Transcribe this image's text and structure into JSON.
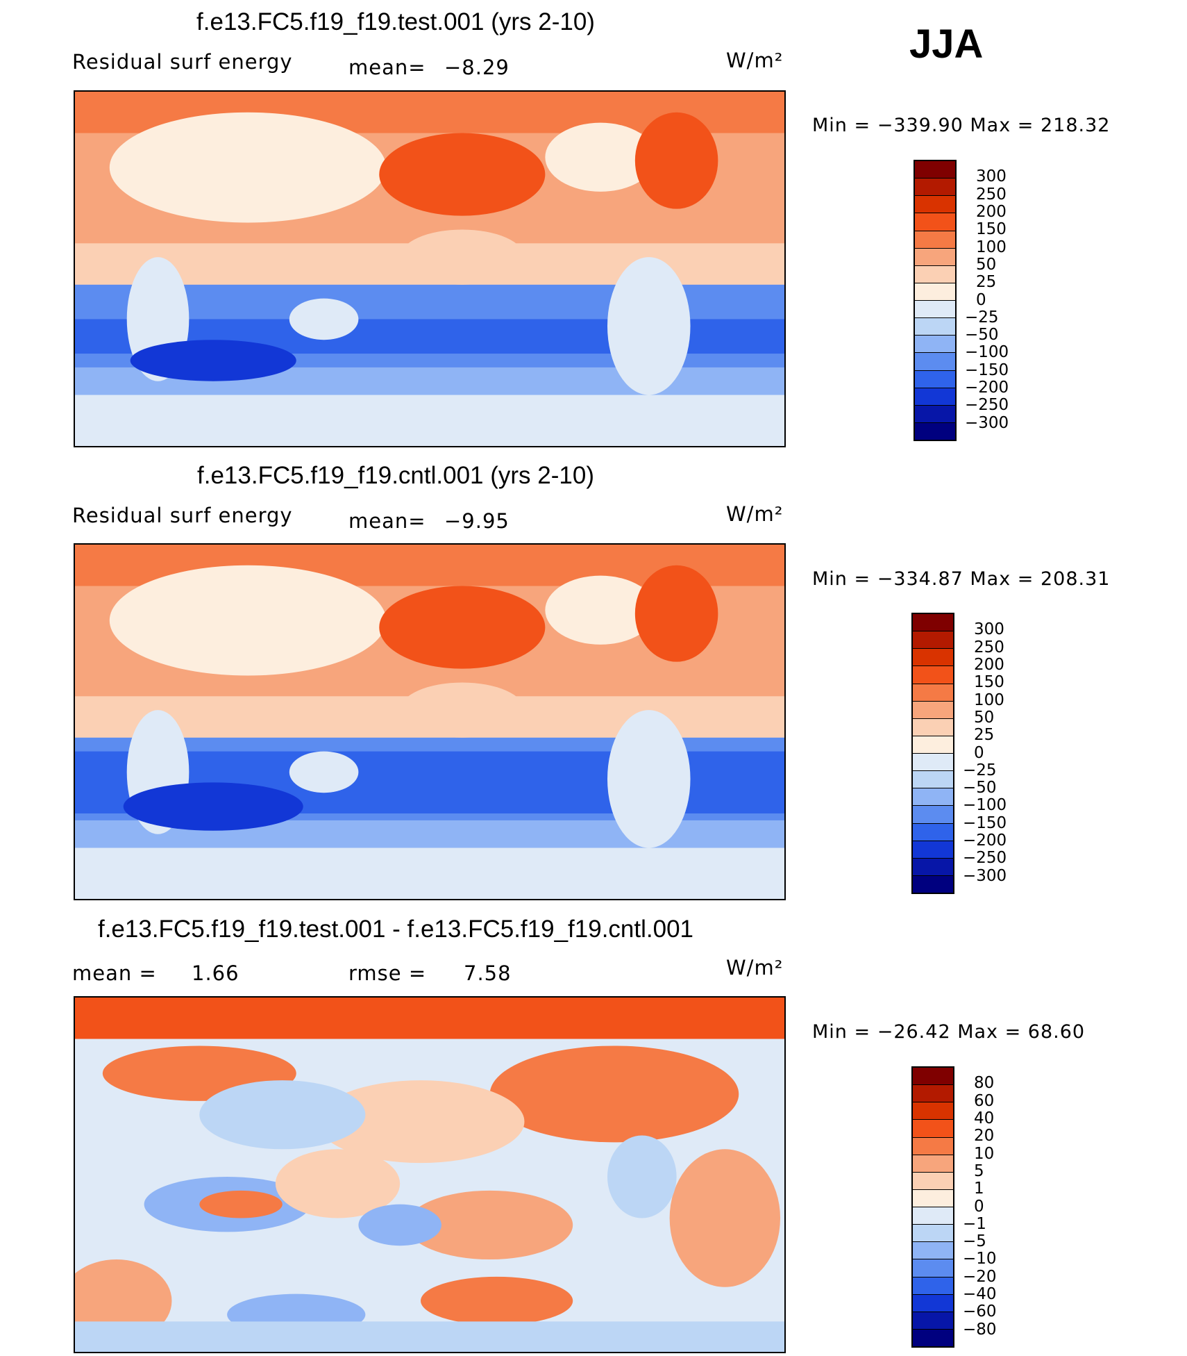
{
  "season": "JJA",
  "panels": [
    {
      "title": "f.e13.FC5.f19_f19.test.001 (yrs 2-10)",
      "left_label": "Residual surf energy",
      "stat1_label": "mean=",
      "stat1_value": "−8.29",
      "stat2_label": "",
      "stat2_value": "",
      "units": "W/m²",
      "minmax": "Min  =  −339.90  Max  =  218.32",
      "min": -339.9,
      "max": 218.32,
      "colorbar_labels": [
        "300",
        "250",
        "200",
        "150",
        "100",
        "50",
        "25",
        "0",
        "−25",
        "−50",
        "−100",
        "−150",
        "−200",
        "−250",
        "−300"
      ]
    },
    {
      "title": "f.e13.FC5.f19_f19.cntl.001 (yrs 2-10)",
      "left_label": "Residual surf energy",
      "stat1_label": "mean=",
      "stat1_value": "−9.95",
      "stat2_label": "",
      "stat2_value": "",
      "units": "W/m²",
      "minmax": "Min  =  −334.87  Max  =  208.31",
      "min": -334.87,
      "max": 208.31,
      "colorbar_labels": [
        "300",
        "250",
        "200",
        "150",
        "100",
        "50",
        "25",
        "0",
        "−25",
        "−50",
        "−100",
        "−150",
        "−200",
        "−250",
        "−300"
      ]
    },
    {
      "title": "f.e13.FC5.f19_f19.test.001 - f.e13.FC5.f19_f19.cntl.001",
      "left_label": "mean  =",
      "stat1_label": "rmse  =",
      "stat1_value": "7.58",
      "stat2_label": "",
      "stat2_value": "1.66",
      "units": "W/m²",
      "minmax": "Min  =  −26.42  Max  =   68.60",
      "min": -26.42,
      "max": 68.6,
      "colorbar_labels": [
        "80",
        "60",
        "40",
        "20",
        "10",
        "5",
        "1",
        "0",
        "−1",
        "−5",
        "−10",
        "−20",
        "−40",
        "−60",
        "−80"
      ]
    }
  ],
  "colors": {
    "colorbar": [
      "#7f0000",
      "#b31a00",
      "#d93300",
      "#f25219",
      "#f57a45",
      "#f7a57c",
      "#fbd0b4",
      "#fdeede",
      "#dfeaf7",
      "#bcd6f5",
      "#8fb4f5",
      "#5c8cf0",
      "#2f63ea",
      "#1237d6",
      "#0716a8",
      "#00007f"
    ],
    "land_positive": "#fdeede",
    "land_neutral": "#dfeaf7",
    "ocean_north": "#f7a57c",
    "ocean_south": "#5c8cf0",
    "diff_red": "#f57a45",
    "diff_blue": "#8fb4f5"
  }
}
